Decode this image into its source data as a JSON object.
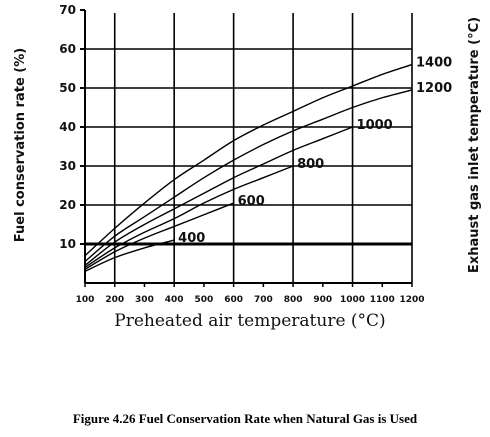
{
  "caption": "Figure 4.26   Fuel Conservation Rate when Natural Gas is Used",
  "chart_data": {
    "type": "line",
    "xlabel": "Preheated air temperature (°C)",
    "ylabel": "Fuel conservation rate (%)",
    "y2label": "Exhaust gas inlet temperature (°C)",
    "xlim": [
      100,
      1200
    ],
    "ylim": [
      0,
      70
    ],
    "x_ticks": [
      100,
      200,
      300,
      400,
      500,
      600,
      700,
      800,
      900,
      1000,
      1100,
      1200
    ],
    "y_ticks": [
      10,
      20,
      30,
      40,
      50,
      60,
      70
    ],
    "grid": true,
    "series": [
      {
        "name": "1400",
        "x": [
          100,
          200,
          300,
          400,
          500,
          600,
          700,
          800,
          900,
          1000,
          1100,
          1200
        ],
        "y": [
          7,
          14,
          20.5,
          26.5,
          31.5,
          36.5,
          40.5,
          44,
          47.5,
          50.5,
          53.5,
          56
        ]
      },
      {
        "name": "1200",
        "x": [
          100,
          200,
          300,
          400,
          500,
          600,
          700,
          800,
          900,
          1000,
          1100,
          1200
        ],
        "y": [
          5.5,
          12,
          17,
          22,
          27,
          31.5,
          35.5,
          39,
          42,
          45,
          47.5,
          49.5
        ]
      },
      {
        "name": "1000",
        "x": [
          100,
          200,
          300,
          400,
          500,
          600,
          700,
          800,
          900,
          1000
        ],
        "y": [
          4.5,
          10.5,
          15,
          19,
          23,
          27,
          30.5,
          34,
          37,
          40
        ]
      },
      {
        "name": "800",
        "x": [
          100,
          200,
          300,
          400,
          500,
          600,
          700,
          800
        ],
        "y": [
          4,
          9,
          13,
          16.5,
          20.5,
          24,
          27,
          30
        ]
      },
      {
        "name": "600",
        "x": [
          100,
          200,
          300,
          400,
          500,
          600
        ],
        "y": [
          3.5,
          8,
          11.5,
          14.5,
          17.5,
          20.5
        ]
      },
      {
        "name": "400",
        "x": [
          100,
          200,
          300,
          400
        ],
        "y": [
          3,
          6.5,
          9,
          11
        ]
      }
    ]
  }
}
